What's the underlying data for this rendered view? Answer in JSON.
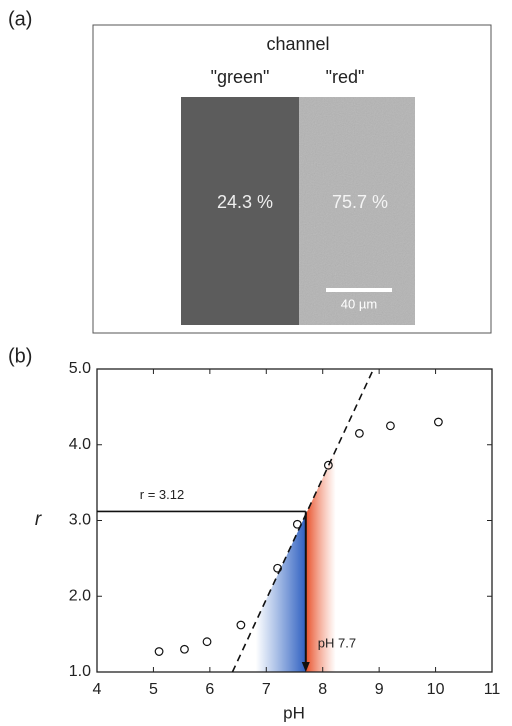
{
  "panel_a": {
    "panel_label": "(a)",
    "title": "channel",
    "left_label": "\"green\"",
    "right_label": "\"red\"",
    "left_value": "24.3 %",
    "right_value": "75.7 %",
    "scale_bar": "40 µm"
  },
  "chart_data": {
    "type": "scatter",
    "panel_label": "(b)",
    "x_label": "pH",
    "y_label": "r",
    "x": [
      5.1,
      5.55,
      5.95,
      6.55,
      7.2,
      7.55,
      8.1,
      8.65,
      9.2,
      10.05
    ],
    "values": [
      1.27,
      1.3,
      1.4,
      1.62,
      2.37,
      2.95,
      3.73,
      4.15,
      4.25,
      4.3
    ],
    "xlim": [
      4,
      11
    ],
    "xticks": [
      4,
      5,
      6,
      7,
      8,
      9,
      10,
      11
    ],
    "ylim": [
      1,
      5
    ],
    "yticks": [
      {
        "value": 1,
        "label": "1.0"
      },
      {
        "value": 2,
        "label": "2.0"
      },
      {
        "value": 3,
        "label": "3.0"
      },
      {
        "value": 4,
        "label": "4.0"
      },
      {
        "value": 5,
        "label": "5.0"
      }
    ],
    "fit_line": {
      "x": [
        6.4,
        8.9
      ],
      "y": [
        1,
        5
      ]
    },
    "threshold": {
      "r": 3.12,
      "r_label": "r = 3.12",
      "ph": 7.7,
      "ph_label": "pH 7.7"
    }
  }
}
